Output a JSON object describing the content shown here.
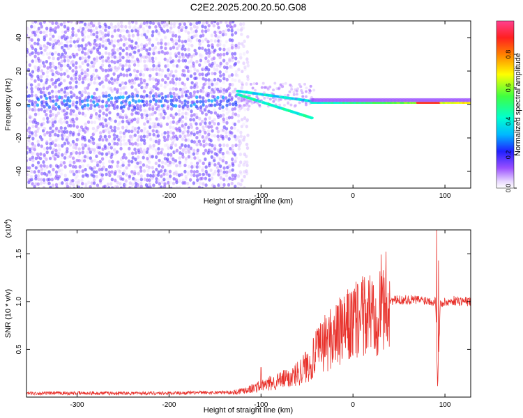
{
  "figure_title": "C2E2.2025.200.20.50.G08",
  "colors": {
    "snr_line": "#e8312b",
    "colormap": [
      "#ffffff",
      "#d8b8ff",
      "#a060ff",
      "#6a00ff",
      "#2020ff",
      "#00b0ff",
      "#00ffcc",
      "#40ff40",
      "#ffff00",
      "#ff8000",
      "#ff2020",
      "#ff40a0"
    ]
  },
  "chart_data": [
    {
      "type": "heatmap",
      "title": "",
      "xlabel": "Height of straight line (km)",
      "ylabel": "Frequency (Hz)",
      "xlim": [
        -355,
        128
      ],
      "ylim": [
        -50,
        50
      ],
      "xticks": [
        -300,
        -200,
        -100,
        0,
        100
      ],
      "yticks": [
        -40,
        -20,
        0,
        20,
        40
      ],
      "colorbar": {
        "label": "Normalized spectral amplitude",
        "range": [
          0,
          1
        ],
        "ticks": [
          0.0,
          0.2,
          0.4,
          0.6,
          0.8
        ]
      },
      "features": {
        "noise_region_x": [
          -355,
          -125
        ],
        "band_center_hz": 3,
        "converging_tracks_x": [
          -125,
          -45
        ],
        "stable_tone_x": [
          -45,
          128
        ],
        "stable_tone_hz": 1
      }
    },
    {
      "type": "line",
      "title": "",
      "xlabel": "Height of straight line (km)",
      "ylabel": "SNR (10 * v/v)",
      "yscale_note": "(x10",
      "yscale_exp": "4",
      "xlim": [
        -355,
        128
      ],
      "ylim": [
        0,
        17500
      ],
      "xticks": [
        -300,
        -200,
        -100,
        0,
        100
      ],
      "yticks": [
        0.5,
        1.0,
        1.5
      ],
      "ytick_labels": [
        "0.5",
        "1.0",
        "1.5"
      ],
      "series": [
        {
          "values_xy": [
            [
              -355,
              400
            ],
            [
              -200,
              420
            ],
            [
              -130,
              500
            ],
            [
              -110,
              900
            ],
            [
              -95,
              1300
            ],
            [
              -80,
              1700
            ],
            [
              -65,
              2200
            ],
            [
              -55,
              2900
            ],
            [
              -45,
              3800
            ],
            [
              -38,
              4800
            ],
            [
              -30,
              5800
            ],
            [
              -20,
              6400
            ],
            [
              -10,
              7000
            ],
            [
              0,
              7700
            ],
            [
              10,
              8200
            ],
            [
              20,
              9000
            ],
            [
              30,
              9700
            ],
            [
              40,
              10100
            ],
            [
              60,
              10200
            ],
            [
              80,
              10150
            ],
            [
              90,
              10000
            ],
            [
              92,
              1200
            ],
            [
              95,
              9800
            ],
            [
              110,
              10100
            ],
            [
              128,
              10000
            ]
          ],
          "spikes_xy": [
            [
              -100,
              3100
            ],
            [
              -70,
              2700
            ],
            [
              -40,
              5000
            ],
            [
              -25,
              8000
            ],
            [
              -5,
              10800
            ],
            [
              5,
              11800
            ],
            [
              12,
              9800
            ],
            [
              91,
              17500
            ],
            [
              93,
              14300
            ]
          ]
        }
      ]
    }
  ]
}
